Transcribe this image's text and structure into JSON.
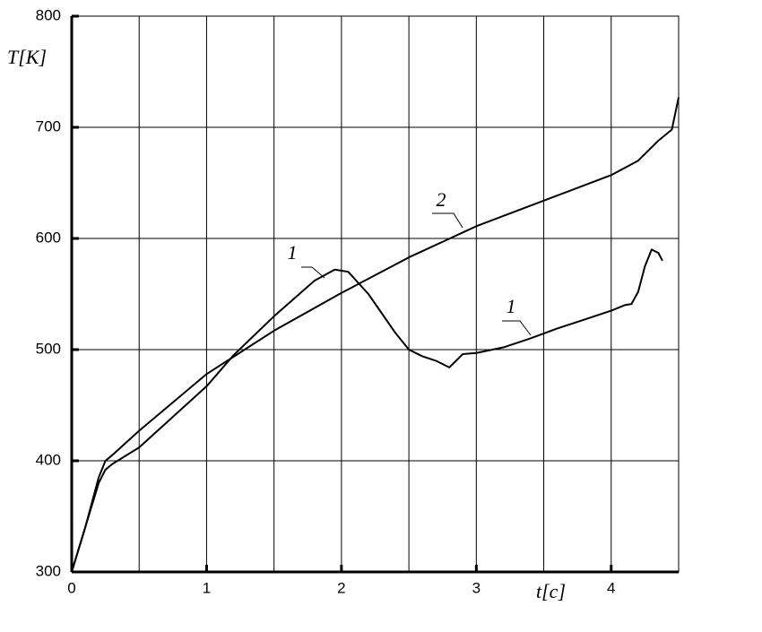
{
  "chart_data": {
    "type": "line",
    "y_label": "T[K]",
    "x_label": "t[c]",
    "xlim": [
      0,
      4.5
    ],
    "ylim": [
      300,
      800
    ],
    "xticks": [
      0,
      1,
      2,
      3,
      4
    ],
    "yticks": [
      300,
      400,
      500,
      600,
      700,
      800
    ],
    "xgrid": [
      0.5,
      1,
      1.5,
      2,
      2.5,
      3,
      3.5,
      4
    ],
    "grid": true,
    "series": [
      {
        "name": "1",
        "color": "#000000",
        "x": [
          0,
          0.1,
          0.2,
          0.25,
          0.3,
          0.5,
          1.0,
          1.2,
          1.5,
          1.8,
          1.95,
          2.05,
          2.2,
          2.4,
          2.5,
          2.6,
          2.7,
          2.8,
          2.9,
          3.0,
          3.2,
          3.4,
          3.6,
          3.8,
          4.0,
          4.1,
          4.15,
          4.2,
          4.25,
          4.3,
          4.35,
          4.38
        ],
        "values": [
          300,
          340,
          380,
          392,
          397,
          412,
          467,
          495,
          530,
          562,
          572,
          570,
          550,
          515,
          500,
          494,
          490,
          484,
          496,
          497,
          502,
          510,
          519,
          527,
          535,
          540,
          541,
          552,
          575,
          590,
          587,
          580
        ]
      },
      {
        "name": "2",
        "color": "#000000",
        "x": [
          0,
          0.1,
          0.2,
          0.25,
          0.3,
          0.5,
          1.0,
          1.5,
          2.0,
          2.5,
          3.0,
          3.5,
          4.0,
          4.2,
          4.35,
          4.45,
          4.5
        ],
        "values": [
          300,
          340,
          385,
          400,
          405,
          427,
          478,
          517,
          551,
          583,
          611,
          634,
          657,
          670,
          688,
          698,
          727
        ]
      }
    ]
  }
}
